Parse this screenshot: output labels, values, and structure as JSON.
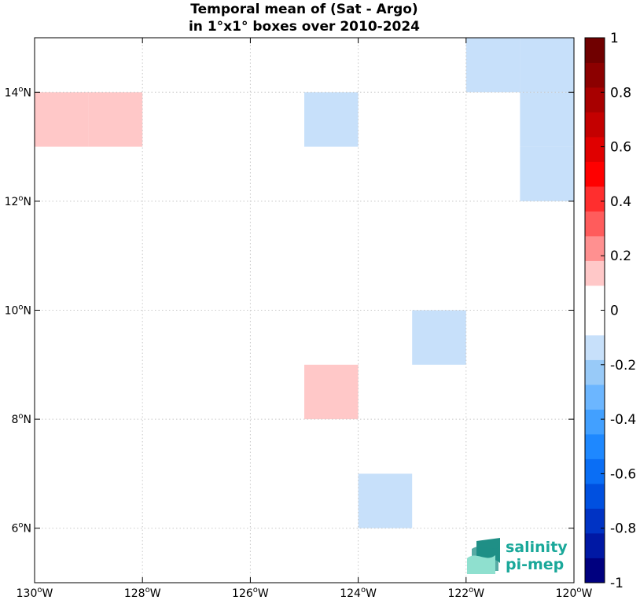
{
  "chart_data": {
    "type": "heatmap",
    "title_lines": [
      "Temporal mean of (Sat - Argo)",
      "in 1°x1° boxes over 2010-2024"
    ],
    "x_range": [
      -130,
      -120
    ],
    "y_range": [
      5,
      15
    ],
    "grid": true,
    "x_ticks": [
      -130,
      -128,
      -126,
      -124,
      -122,
      -120
    ],
    "x_tick_labels": [
      "130",
      "128",
      "126",
      "124",
      "122",
      "120"
    ],
    "x_tick_suffix": "W",
    "y_ticks": [
      6,
      8,
      10,
      12,
      14
    ],
    "y_tick_labels": [
      "6",
      "8",
      "10",
      "12",
      "14"
    ],
    "y_tick_suffix": "N",
    "degree_symbol": "o",
    "cells": [
      {
        "lon": -130,
        "lat": 13,
        "value": 0.15
      },
      {
        "lon": -129,
        "lat": 13,
        "value": 0.15
      },
      {
        "lon": -125,
        "lat": 13,
        "value": -0.15
      },
      {
        "lon": -122,
        "lat": 14,
        "value": -0.15
      },
      {
        "lon": -121,
        "lat": 14,
        "value": -0.15
      },
      {
        "lon": -121,
        "lat": 13,
        "value": -0.15
      },
      {
        "lon": -121,
        "lat": 12,
        "value": -0.15
      },
      {
        "lon": -123,
        "lat": 9,
        "value": -0.15
      },
      {
        "lon": -125,
        "lat": 8,
        "value": 0.15
      },
      {
        "lon": -124,
        "lat": 6,
        "value": -0.15
      }
    ],
    "colorbar": {
      "range": [
        -1,
        1
      ],
      "ticks": [
        -1,
        -0.8,
        -0.6,
        -0.4,
        -0.2,
        0,
        0.2,
        0.4,
        0.6,
        0.8,
        1
      ],
      "tick_labels": [
        "-1",
        "-0.8",
        "-0.6",
        "-0.4",
        "-0.2",
        "0",
        "0.2",
        "0.4",
        "0.6",
        "0.8",
        "1"
      ],
      "colors_bottom_to_top": [
        "#00007f",
        "#0018a4",
        "#0033c4",
        "#0050e0",
        "#0a6ef5",
        "#1e88ff",
        "#42a0ff",
        "#6cb6ff",
        "#98caf8",
        "#c7e0fa",
        "#ffffff",
        "#ffffff",
        "#ffc8c8",
        "#ff9090",
        "#ff5c5c",
        "#ff2e2e",
        "#ff0000",
        "#e00000",
        "#c40000",
        "#a80000",
        "#8c0000",
        "#700000"
      ]
    }
  },
  "logo": {
    "line1": "salinity",
    "line2": "pi-mep",
    "colors": {
      "text": "#1aa89a",
      "icon_dark": "#1f8f86",
      "icon_light": "#8fe0cf"
    }
  }
}
